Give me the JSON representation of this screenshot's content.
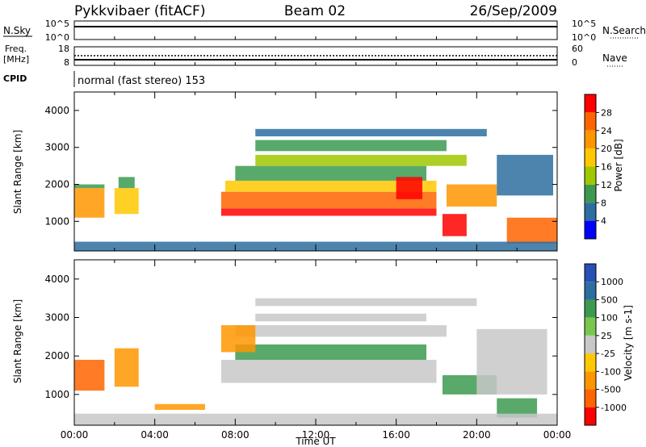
{
  "header": {
    "title": "Pykkvibaer (fitACF)",
    "beam": "Beam 02",
    "date": "26/Sep/2009"
  },
  "strips": {
    "nsky_label": "N.Sky",
    "nsky_ticks": [
      "10^5",
      "10^0"
    ],
    "nsearch_label": "N.Search",
    "nsearch_ticks": [
      "10^5",
      "10^0"
    ],
    "freq_label": "Freq.",
    "freq_unit": "[MHz]",
    "freq_ticks": [
      "18",
      "8"
    ],
    "nave_label": "Nave",
    "nave_ticks": [
      "60",
      "0"
    ],
    "cpid_label": "CPID",
    "cpid_text": "normal (fast stereo) 153"
  },
  "chart_data": [
    {
      "type": "heatmap",
      "panel": "power",
      "ylabel": "Slant Range [km]",
      "y_ticks": [
        1000,
        2000,
        3000,
        4000
      ],
      "ylim": [
        200,
        4500
      ],
      "xlim": [
        0,
        24
      ],
      "colorbar": {
        "label": "Power [dB]",
        "ticks": [
          "28",
          "24",
          "20",
          "16",
          "12",
          "8",
          "4"
        ],
        "colors": [
          "#ff0000",
          "#ff6400",
          "#ff9600",
          "#ffc800",
          "#a0c800",
          "#3c9a50",
          "#2d6ea0",
          "#0000ff"
        ]
      },
      "regions": [
        {
          "t0": 0.0,
          "t1": 1.5,
          "r0": 1100,
          "r1": 1900,
          "color": "#ff9600"
        },
        {
          "t0": 0.0,
          "t1": 1.5,
          "r0": 1900,
          "r1": 2000,
          "color": "#3c9a50"
        },
        {
          "t0": 2.0,
          "t1": 3.2,
          "r0": 1200,
          "r1": 1900,
          "color": "#ffc800"
        },
        {
          "t0": 2.2,
          "t1": 3.0,
          "r0": 1900,
          "r1": 2200,
          "color": "#3c9a50"
        },
        {
          "t0": 7.3,
          "t1": 18.0,
          "r0": 1150,
          "r1": 1350,
          "color": "#ff0000"
        },
        {
          "t0": 7.3,
          "t1": 18.0,
          "r0": 1350,
          "r1": 1800,
          "color": "#ff6400"
        },
        {
          "t0": 7.5,
          "t1": 18.0,
          "r0": 1800,
          "r1": 2100,
          "color": "#ffc800"
        },
        {
          "t0": 8.0,
          "t1": 17.5,
          "r0": 2100,
          "r1": 2500,
          "color": "#3c9a50"
        },
        {
          "t0": 9.0,
          "t1": 19.5,
          "r0": 2500,
          "r1": 2800,
          "color": "#a0c800"
        },
        {
          "t0": 9.0,
          "t1": 18.5,
          "r0": 2900,
          "r1": 3200,
          "color": "#3c9a50"
        },
        {
          "t0": 9.0,
          "t1": 20.5,
          "r0": 3300,
          "r1": 3500,
          "color": "#2d6ea0"
        },
        {
          "t0": 16.0,
          "t1": 17.3,
          "r0": 1600,
          "r1": 2200,
          "color": "#ff0000"
        },
        {
          "t0": 18.5,
          "t1": 21.0,
          "r0": 1400,
          "r1": 2000,
          "color": "#ff9600"
        },
        {
          "t0": 18.3,
          "t1": 19.5,
          "r0": 600,
          "r1": 1200,
          "color": "#ff0000"
        },
        {
          "t0": 21.0,
          "t1": 23.8,
          "r0": 1700,
          "r1": 2800,
          "color": "#2d6ea0"
        },
        {
          "t0": 21.5,
          "t1": 24.0,
          "r0": 400,
          "r1": 1100,
          "color": "#ff6400"
        },
        {
          "t0": 0.0,
          "t1": 24.0,
          "r0": 200,
          "r1": 450,
          "color": "#2d6ea0"
        }
      ]
    },
    {
      "type": "heatmap",
      "panel": "velocity",
      "ylabel": "Slant Range [km]",
      "y_ticks": [
        1000,
        2000,
        3000,
        4000
      ],
      "ylim": [
        200,
        4500
      ],
      "xlim": [
        0,
        24
      ],
      "xlabel": "Time UT",
      "x_ticks": [
        "00:00",
        "04:00",
        "08:00",
        "12:00",
        "16:00",
        "20:00",
        "00:00"
      ],
      "colorbar": {
        "label": "Velocity [m s-1]",
        "ticks": [
          "1000",
          "500",
          "100",
          "25",
          "-25",
          "-100",
          "-500",
          "-1000"
        ],
        "colors": [
          "#2850b4",
          "#2d6ea0",
          "#3c9a50",
          "#78c850",
          "#c8c8c8",
          "#ffc800",
          "#ff9600",
          "#ff6400",
          "#ff0000"
        ]
      },
      "regions": [
        {
          "t0": 0.0,
          "t1": 1.5,
          "r0": 1100,
          "r1": 1900,
          "color": "#ff6400"
        },
        {
          "t0": 2.0,
          "t1": 3.2,
          "r0": 1200,
          "r1": 2200,
          "color": "#ff9600"
        },
        {
          "t0": 7.3,
          "t1": 18.0,
          "r0": 1300,
          "r1": 1900,
          "color": "#c8c8c8"
        },
        {
          "t0": 8.0,
          "t1": 17.5,
          "r0": 1900,
          "r1": 2300,
          "color": "#3c9a50"
        },
        {
          "t0": 8.0,
          "t1": 18.5,
          "r0": 2500,
          "r1": 2800,
          "color": "#c8c8c8"
        },
        {
          "t0": 9.0,
          "t1": 17.5,
          "r0": 2900,
          "r1": 3100,
          "color": "#c8c8c8"
        },
        {
          "t0": 9.0,
          "t1": 20.0,
          "r0": 3300,
          "r1": 3500,
          "color": "#c8c8c8"
        },
        {
          "t0": 7.3,
          "t1": 9.0,
          "r0": 2100,
          "r1": 2800,
          "color": "#ff9600"
        },
        {
          "t0": 18.3,
          "t1": 21.0,
          "r0": 1000,
          "r1": 1500,
          "color": "#3c9a50"
        },
        {
          "t0": 20.0,
          "t1": 23.5,
          "r0": 1000,
          "r1": 2700,
          "color": "#c8c8c8"
        },
        {
          "t0": 21.0,
          "t1": 23.0,
          "r0": 400,
          "r1": 900,
          "color": "#3c9a50"
        },
        {
          "t0": 0.0,
          "t1": 24.0,
          "r0": 200,
          "r1": 500,
          "color": "#c8c8c8"
        },
        {
          "t0": 4.0,
          "t1": 6.5,
          "r0": 600,
          "r1": 750,
          "color": "#ff9600"
        }
      ]
    }
  ]
}
